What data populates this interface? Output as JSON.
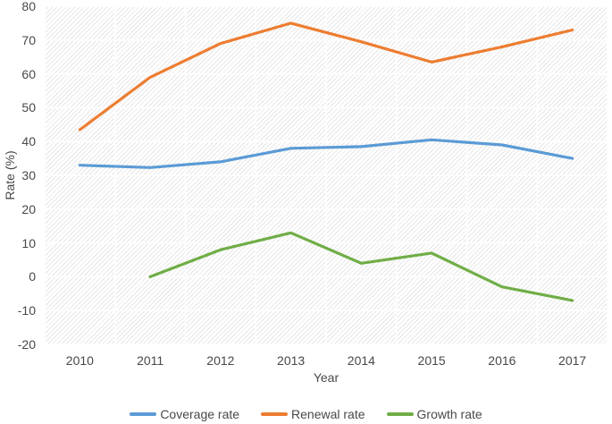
{
  "chart_data": {
    "type": "line",
    "title": "",
    "xlabel": "Year",
    "ylabel": "Rate (%)",
    "categories": [
      "2010",
      "2011",
      "2012",
      "2013",
      "2014",
      "2015",
      "2016",
      "2017"
    ],
    "series": [
      {
        "name": "Coverage rate",
        "color": "#5B9BD5",
        "values": [
          33,
          32.3,
          34,
          38,
          38.5,
          40.5,
          39,
          35
        ]
      },
      {
        "name": "Renewal rate",
        "color": "#ED7D31",
        "values": [
          43.5,
          59,
          69,
          75,
          69.5,
          63.5,
          68,
          73
        ]
      },
      {
        "name": "Growth rate",
        "color": "#70AD47",
        "values": [
          null,
          0,
          8,
          13,
          4,
          7,
          -3,
          -7
        ]
      }
    ],
    "ylim": [
      -20,
      80
    ],
    "ytick_step": 10,
    "grid": true,
    "legend_position": "bottom",
    "plot_background": "diagonal-hatch"
  }
}
